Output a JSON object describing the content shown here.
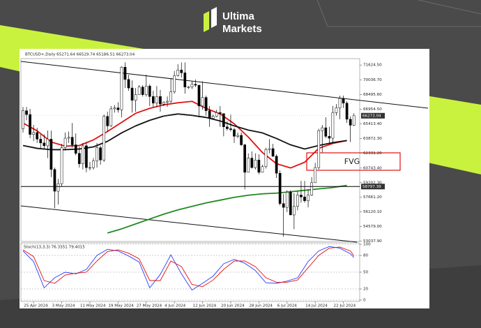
{
  "logo": {
    "line1": "Ultima",
    "line2": "Markets"
  },
  "chart_data": [
    {
      "type": "candlestick",
      "title": "BTCUSD+,Daily 65271.64 66529.74 65186.51 66273.04",
      "x": [
        "22 Apr 2024",
        "23 Apr 2024",
        "24 Apr 2024",
        "25 Apr 2024",
        "26 Apr 2024",
        "27 Apr 2024",
        "28 Apr 2024",
        "29 Apr 2024",
        "30 Apr 2024",
        "1 May 2024",
        "2 May 2024",
        "3 May 2024",
        "4 May 2024",
        "5 May 2024",
        "6 May 2024",
        "7 May 2024",
        "8 May 2024",
        "9 May 2024",
        "10 May 2024",
        "11 May 2024",
        "12 May 2024",
        "13 May 2024",
        "14 May 2024",
        "15 May 2024",
        "16 May 2024",
        "17 May 2024",
        "18 May 2024",
        "19 May 2024",
        "20 May 2024",
        "21 May 2024",
        "22 May 2024",
        "23 May 2024",
        "24 May 2024",
        "25 May 2024",
        "26 May 2024",
        "27 May 2024",
        "28 May 2024",
        "29 May 2024",
        "30 May 2024",
        "31 May 2024",
        "1 Jun 2024",
        "2 Jun 2024",
        "3 Jun 2024",
        "4 Jun 2024",
        "5 Jun 2024",
        "6 Jun 2024",
        "7 Jun 2024",
        "8 Jun 2024",
        "9 Jun 2024",
        "10 Jun 2024",
        "11 Jun 2024",
        "12 Jun 2024",
        "13 Jun 2024",
        "14 Jun 2024",
        "15 Jun 2024",
        "16 Jun 2024",
        "17 Jun 2024",
        "18 Jun 2024",
        "19 Jun 2024",
        "20 Jun 2024",
        "21 Jun 2024",
        "22 Jun 2024",
        "23 Jun 2024",
        "24 Jun 2024",
        "25 Jun 2024",
        "26 Jun 2024",
        "27 Jun 2024",
        "28 Jun 2024",
        "29 Jun 2024",
        "30 Jun 2024",
        "1 Jul 2024",
        "2 Jul 2024",
        "3 Jul 2024",
        "4 Jul 2024",
        "5 Jul 2024",
        "6 Jul 2024",
        "7 Jul 2024",
        "8 Jul 2024",
        "9 Jul 2024",
        "10 Jul 2024",
        "11 Jul 2024",
        "12 Jul 2024",
        "13 Jul 2024",
        "14 Jul 2024",
        "15 Jul 2024",
        "16 Jul 2024",
        "17 Jul 2024",
        "18 Jul 2024",
        "19 Jul 2024",
        "20 Jul 2024",
        "21 Jul 2024",
        "22 Jul 2024",
        "23 Jul 2024",
        "24 Jul 2024",
        "25 Jul 2024"
      ],
      "open": [
        64900,
        66800,
        66400,
        64300,
        64500,
        63800,
        63400,
        63100,
        63800,
        60600,
        58300,
        59100,
        62900,
        63900,
        64000,
        63200,
        62300,
        61200,
        63100,
        60800,
        60800,
        61500,
        62900,
        61600,
        66200,
        65200,
        67000,
        67100,
        66900,
        71400,
        70100,
        69200,
        67900,
        68500,
        69300,
        68500,
        69400,
        68300,
        67600,
        68300,
        67500,
        67700,
        67800,
        68800,
        70500,
        71100,
        70800,
        69300,
        69300,
        69600,
        69500,
        67300,
        68200,
        66800,
        66000,
        66200,
        66600,
        66500,
        65100,
        64900,
        64800,
        64100,
        64200,
        63200,
        60300,
        61800,
        60800,
        61600,
        60300,
        60900,
        62700,
        62800,
        62000,
        60200,
        57000,
        56600,
        58200,
        55800,
        56700,
        57900,
        57700,
        57300,
        57900,
        59200,
        60800,
        64700,
        65000,
        64100,
        63900,
        66600,
        67100,
        68100,
        67600,
        65900,
        65271.64
      ],
      "high": [
        67200,
        67200,
        67000,
        65300,
        65000,
        64300,
        64300,
        64700,
        64700,
        60800,
        59600,
        63300,
        64500,
        64600,
        65500,
        64400,
        63000,
        63400,
        63500,
        61400,
        61800,
        63400,
        63100,
        66400,
        66700,
        67300,
        67400,
        67700,
        71500,
        71900,
        70600,
        70000,
        69200,
        69500,
        69500,
        70600,
        69600,
        68900,
        69400,
        69000,
        67800,
        68300,
        70200,
        71000,
        71700,
        71900,
        71900,
        69400,
        69900,
        70100,
        69500,
        69900,
        68400,
        67300,
        66400,
        66900,
        67300,
        66500,
        65700,
        66400,
        65000,
        64500,
        64500,
        63300,
        62300,
        62500,
        62300,
        62200,
        61100,
        62900,
        63800,
        63300,
        62200,
        60500,
        58000,
        58400,
        58400,
        58100,
        58300,
        59400,
        59400,
        58500,
        59800,
        61300,
        64900,
        65300,
        66100,
        65100,
        67300,
        67500,
        68400,
        68400,
        67800,
        66200,
        66529.74
      ],
      "low": [
        64500,
        65800,
        63900,
        63600,
        63400,
        62800,
        62800,
        61800,
        59800,
        56500,
        56900,
        58800,
        62600,
        63400,
        62900,
        62100,
        60800,
        60600,
        60300,
        60500,
        60600,
        60800,
        61100,
        61400,
        64600,
        65100,
        66600,
        66600,
        66100,
        69200,
        68900,
        66600,
        66700,
        68500,
        68300,
        68300,
        67300,
        67200,
        67200,
        66700,
        67300,
        67200,
        67600,
        68600,
        70400,
        70300,
        68600,
        69100,
        69100,
        69300,
        66100,
        66900,
        66300,
        65100,
        65900,
        66100,
        65100,
        64100,
        64700,
        64600,
        63400,
        63900,
        63100,
        58500,
        60300,
        60700,
        60600,
        60100,
        60300,
        60700,
        62300,
        61900,
        59700,
        56800,
        53500,
        56100,
        55800,
        54300,
        56300,
        57100,
        57100,
        56600,
        57800,
        59200,
        60600,
        62400,
        63900,
        63300,
        63400,
        66300,
        65900,
        67100,
        65500,
        63500,
        65186.51
      ],
      "close": [
        66800,
        66400,
        64300,
        64500,
        63800,
        63400,
        63100,
        63800,
        60600,
        58300,
        59100,
        62900,
        63900,
        64000,
        63200,
        62300,
        61200,
        63100,
        60800,
        60800,
        61500,
        62900,
        61600,
        66200,
        65200,
        67000,
        67100,
        66900,
        71400,
        70100,
        69200,
        67900,
        68500,
        69300,
        68500,
        69400,
        68300,
        67600,
        68300,
        67500,
        67700,
        67800,
        68800,
        70500,
        71100,
        70800,
        69300,
        69300,
        69600,
        69500,
        67300,
        68200,
        66800,
        66000,
        66200,
        66600,
        66500,
        65100,
        64900,
        64800,
        64100,
        64200,
        63200,
        60300,
        61800,
        60800,
        61600,
        60300,
        60900,
        62700,
        62800,
        62000,
        60200,
        57000,
        56600,
        58200,
        55800,
        56700,
        57900,
        57700,
        57300,
        57900,
        59200,
        60800,
        64700,
        65000,
        64100,
        63900,
        66600,
        67100,
        68100,
        67600,
        65900,
        65270,
        66273.04
      ],
      "up_color": "#ffffff",
      "down_color": "#000000",
      "series": [
        {
          "color": "#e01010",
          "x": [
            "22 Apr 2024",
            "26 Apr 2024",
            "30 Apr 2024",
            "4 May 2024",
            "8 May 2024",
            "12 May 2024",
            "16 May 2024",
            "20 May 2024",
            "24 May 2024",
            "28 May 2024",
            "1 Jun 2024",
            "5 Jun 2024",
            "9 Jun 2024",
            "13 Jun 2024",
            "17 Jun 2024",
            "21 Jun 2024",
            "25 Jun 2024",
            "29 Jun 2024",
            "3 Jul 2024",
            "7 Jul 2024",
            "11 Jul 2024",
            "15 Jul 2024",
            "19 Jul 2024",
            "23 Jul 2024"
          ],
          "values": [
            65500,
            64680,
            63500,
            63060,
            63130,
            63720,
            64610,
            65570,
            66530,
            67050,
            67420,
            67640,
            67790,
            67050,
            66460,
            65420,
            64020,
            62390,
            61210,
            60760,
            61360,
            62830,
            63350,
            63650
          ]
        },
        {
          "color": "#111111",
          "x": [
            "22 Apr 2024",
            "26 Apr 2024",
            "30 Apr 2024",
            "4 May 2024",
            "8 May 2024",
            "12 May 2024",
            "16 May 2024",
            "20 May 2024",
            "24 May 2024",
            "28 May 2024",
            "1 Jun 2024",
            "5 Jun 2024",
            "9 Jun 2024",
            "13 Jun 2024",
            "17 Jun 2024",
            "21 Jun 2024",
            "25 Jun 2024",
            "29 Jun 2024",
            "3 Jul 2024",
            "7 Jul 2024",
            "11 Jul 2024",
            "15 Jul 2024",
            "19 Jul 2024",
            "23 Jul 2024"
          ],
          "values": [
            63130,
            62830,
            62690,
            62690,
            62760,
            62980,
            63570,
            64460,
            65200,
            65790,
            66240,
            66460,
            66310,
            66090,
            65720,
            65200,
            64760,
            64460,
            63870,
            63200,
            62760,
            63130,
            63430,
            63650
          ]
        },
        {
          "color": "#1f8a1f",
          "x": [
            "16 May 2024",
            "20 May 2024",
            "24 May 2024",
            "28 May 2024",
            "1 Jun 2024",
            "5 Jun 2024",
            "9 Jun 2024",
            "13 Jun 2024",
            "17 Jun 2024",
            "21 Jun 2024",
            "25 Jun 2024",
            "29 Jun 2024",
            "3 Jul 2024",
            "7 Jul 2024",
            "11 Jul 2024",
            "15 Jul 2024",
            "19 Jul 2024",
            "23 Jul 2024"
          ],
          "values": [
            53890,
            54330,
            54850,
            55370,
            55880,
            56330,
            56700,
            57070,
            57360,
            57660,
            57880,
            58030,
            58100,
            58250,
            58400,
            58550,
            58690,
            58920
          ]
        }
      ],
      "hlines": [
        58797.39
      ],
      "annotations": [
        "FVG"
      ],
      "ylim": [
        53000,
        72300
      ],
      "yticks": [
        {
          "value": 71624.5,
          "label": "71624.50"
        },
        {
          "value": 70036.7,
          "label": "70036.70"
        },
        {
          "value": 68495.6,
          "label": "68495.60"
        },
        {
          "value": 66954.5,
          "label": "66954.50"
        },
        {
          "value": 65413.4,
          "label": "65413.40"
        },
        {
          "value": 63872.3,
          "label": "63872.30"
        },
        {
          "value": 62331.2,
          "label": "62331.20"
        },
        {
          "value": 60743.4,
          "label": "60743.40"
        },
        {
          "value": 59202.3,
          "label": "59202.30"
        },
        {
          "value": 57661.2,
          "label": "57661.20"
        },
        {
          "value": 56120.1,
          "label": "56120.10"
        },
        {
          "value": 54579,
          "label": "54579.00"
        },
        {
          "value": 53037.9,
          "label": "53037.90"
        }
      ]
    },
    {
      "type": "line",
      "title": "Stoch(13,3,3) 76.3351 79.4015",
      "series": [
        {
          "color": "#2a3cff",
          "x": [
            "22 Apr 2024",
            "25 Apr 2024",
            "28 Apr 2024",
            "1 May 2024",
            "4 May 2024",
            "7 May 2024",
            "10 May 2024",
            "13 May 2024",
            "16 May 2024",
            "19 May 2024",
            "22 May 2024",
            "25 May 2024",
            "28 May 2024",
            "31 May 2024",
            "3 Jun 2024",
            "6 Jun 2024",
            "9 Jun 2024",
            "12 Jun 2024",
            "15 Jun 2024",
            "18 Jun 2024",
            "21 Jun 2024",
            "24 Jun 2024",
            "27 Jun 2024",
            "30 Jun 2024",
            "3 Jul 2024",
            "6 Jul 2024",
            "9 Jul 2024",
            "12 Jul 2024",
            "15 Jul 2024",
            "18 Jul 2024",
            "21 Jul 2024",
            "24 Jul 2024",
            "25 Jul 2024"
          ],
          "values": [
            88,
            69,
            22,
            40,
            50,
            47,
            55,
            80,
            91,
            88,
            79,
            68,
            22,
            46,
            81,
            47,
            18,
            30,
            43,
            65,
            73,
            66,
            53,
            31,
            30,
            34,
            40,
            69,
            88,
            96,
            93,
            83,
            76.3351
          ]
        },
        {
          "color": "#e01010",
          "x": [
            "22 Apr 2024",
            "25 Apr 2024",
            "28 Apr 2024",
            "1 May 2024",
            "4 May 2024",
            "7 May 2024",
            "10 May 2024",
            "13 May 2024",
            "16 May 2024",
            "19 May 2024",
            "22 May 2024",
            "25 May 2024",
            "28 May 2024",
            "31 May 2024",
            "3 Jun 2024",
            "6 Jun 2024",
            "9 Jun 2024",
            "12 Jun 2024",
            "15 Jun 2024",
            "18 Jun 2024",
            "21 Jun 2024",
            "24 Jun 2024",
            "27 Jun 2024",
            "30 Jun 2024",
            "3 Jul 2024",
            "6 Jul 2024",
            "9 Jul 2024",
            "12 Jul 2024",
            "15 Jul 2024",
            "18 Jul 2024",
            "21 Jul 2024",
            "24 Jul 2024",
            "25 Jul 2024"
          ],
          "values": [
            90,
            78,
            35,
            30,
            45,
            48,
            50,
            70,
            87,
            90,
            84,
            74,
            35,
            35,
            70,
            60,
            28,
            24,
            36,
            55,
            70,
            70,
            60,
            40,
            32,
            32,
            36,
            58,
            80,
            93,
            95,
            88,
            79.4015
          ]
        }
      ],
      "ylim": [
        0,
        100
      ],
      "yticks": [
        100,
        80,
        50,
        20,
        0
      ],
      "xticks": [
        "25 Apr 2024",
        "3 May 2024",
        "11 May 2024",
        "19 May 2024",
        "27 May 2024",
        "4 Jun 2024",
        "12 Jun 2024",
        "20 Jun 2024",
        "28 Jun 2024",
        "6 Jul 2024",
        "14 Jul 2024",
        "22 Jul 2024"
      ]
    }
  ]
}
